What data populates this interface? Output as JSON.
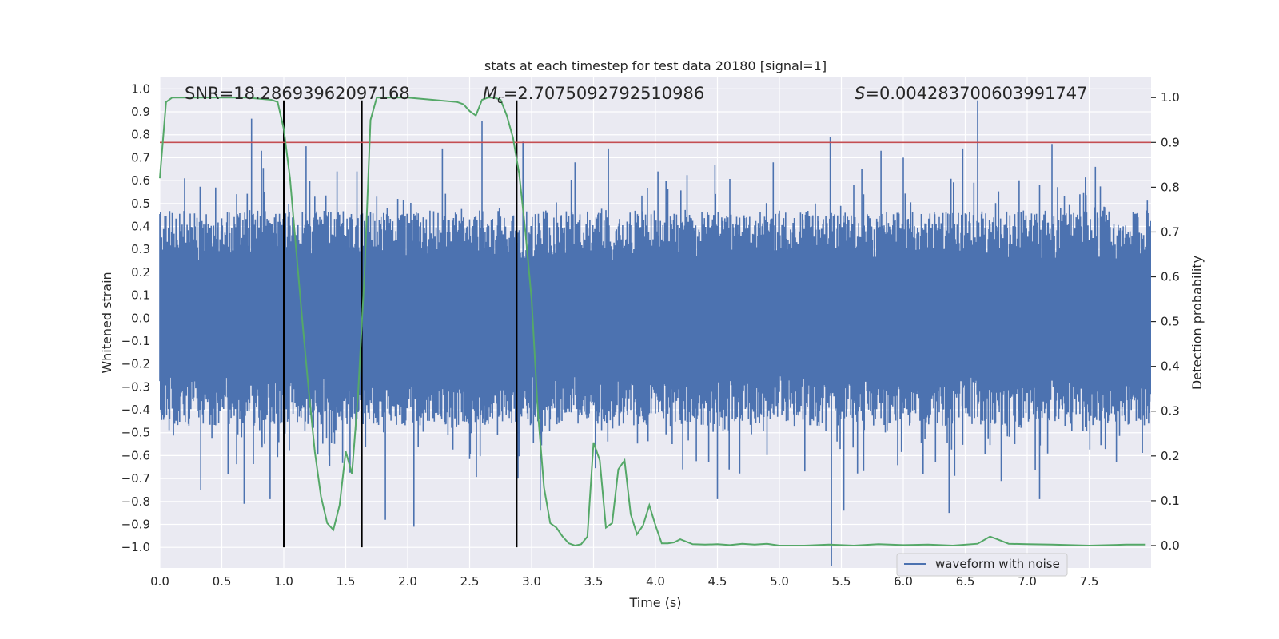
{
  "chart_data": {
    "type": "line",
    "title": "stats at each timestep for test data 20180 [signal=1]",
    "xlabel": "Time (s)",
    "ylabel_left": "Whitened strain",
    "ylabel_right": "Detection probability",
    "xlim": [
      0.0,
      8.0
    ],
    "ylim_left": [
      -1.09,
      1.05
    ],
    "ylim_right": [
      -0.05,
      1.045
    ],
    "x_ticks": [
      0.0,
      0.5,
      1.0,
      1.5,
      2.0,
      2.5,
      3.0,
      3.5,
      4.0,
      4.5,
      5.0,
      5.5,
      6.0,
      6.5,
      7.0,
      7.5
    ],
    "x_tick_labels": [
      "0.0",
      "0.5",
      "1.0",
      "1.5",
      "2.0",
      "2.5",
      "3.0",
      "3.5",
      "4.0",
      "4.5",
      "5.0",
      "5.5",
      "6.0",
      "6.5",
      "7.0",
      "7.5"
    ],
    "y_left_ticks": [
      -1.0,
      -0.9,
      -0.8,
      -0.7,
      -0.6,
      -0.5,
      -0.4,
      -0.3,
      -0.2,
      -0.1,
      0.0,
      0.1,
      0.2,
      0.3,
      0.4,
      0.5,
      0.6,
      0.7,
      0.8,
      0.9,
      1.0
    ],
    "y_left_tick_labels": [
      "−1.0",
      "−0.9",
      "−0.8",
      "−0.7",
      "−0.6",
      "−0.5",
      "−0.4",
      "−0.3",
      "−0.2",
      "−0.1",
      "0.0",
      "0.1",
      "0.2",
      "0.3",
      "0.4",
      "0.5",
      "0.6",
      "0.7",
      "0.8",
      "0.9",
      "1.0"
    ],
    "y_right_ticks": [
      0.0,
      0.1,
      0.2,
      0.3,
      0.4,
      0.5,
      0.6,
      0.7,
      0.8,
      0.9,
      1.0
    ],
    "y_right_tick_labels": [
      "0.0",
      "0.1",
      "0.2",
      "0.3",
      "0.4",
      "0.5",
      "0.6",
      "0.7",
      "0.8",
      "0.9",
      "1.0"
    ],
    "grid": true,
    "annotations": {
      "snr_text": "SNR=18.28693962097168",
      "mc_symbol": "M",
      "mc_subscript": "c",
      "mc_value": "=2.7075092792510986",
      "s_symbol": "S",
      "s_value": "=0.004283700603991747"
    },
    "vertical_lines_x": [
      1.0,
      1.63,
      2.88
    ],
    "vertical_lines_ymin": -1.0,
    "vertical_lines_ymax": 0.95,
    "threshold_line": {
      "axis": "right",
      "y": 0.9
    },
    "waveform_series": {
      "name": "waveform with noise",
      "color": "#4c72b0",
      "samples_per_second": 200,
      "base_amplitude": 0.25,
      "spike_peaks": [
        {
          "x": 0.74,
          "y": 0.87
        },
        {
          "x": 0.2,
          "y": 0.61
        },
        {
          "x": 0.45,
          "y": 0.57
        },
        {
          "x": 0.82,
          "y": 0.73
        },
        {
          "x": 1.18,
          "y": 0.75
        },
        {
          "x": 1.43,
          "y": 0.64
        },
        {
          "x": 1.59,
          "y": 0.64
        },
        {
          "x": 2.28,
          "y": 0.74
        },
        {
          "x": 2.6,
          "y": 0.86
        },
        {
          "x": 2.93,
          "y": 0.77
        },
        {
          "x": 3.35,
          "y": 0.68
        },
        {
          "x": 3.62,
          "y": 0.74
        },
        {
          "x": 4.02,
          "y": 0.64
        },
        {
          "x": 4.48,
          "y": 0.67
        },
        {
          "x": 5.41,
          "y": 0.79
        },
        {
          "x": 6.48,
          "y": 0.74
        },
        {
          "x": 6.6,
          "y": 0.95
        },
        {
          "x": 7.2,
          "y": 0.76
        },
        {
          "x": 7.55,
          "y": 0.66
        },
        {
          "x": 5.82,
          "y": 0.73
        },
        {
          "x": 6.0,
          "y": 0.7
        },
        {
          "x": 4.95,
          "y": 0.68
        }
      ],
      "spike_troughs": [
        {
          "x": 0.33,
          "y": -0.75
        },
        {
          "x": 0.68,
          "y": -0.81
        },
        {
          "x": 0.89,
          "y": -0.79
        },
        {
          "x": 1.82,
          "y": -0.88
        },
        {
          "x": 2.05,
          "y": -0.91
        },
        {
          "x": 3.07,
          "y": -0.84
        },
        {
          "x": 4.5,
          "y": -0.79
        },
        {
          "x": 5.42,
          "y": -1.08
        },
        {
          "x": 5.52,
          "y": -0.84
        },
        {
          "x": 6.37,
          "y": -0.85
        },
        {
          "x": 7.1,
          "y": -0.79
        },
        {
          "x": 0.55,
          "y": -0.68
        },
        {
          "x": 2.89,
          "y": -0.7
        },
        {
          "x": 4.22,
          "y": -0.66
        }
      ]
    },
    "probability_series": {
      "name": "detection probability",
      "color": "#55a868",
      "x": [
        0.0,
        0.05,
        0.1,
        0.2,
        0.3,
        0.5,
        0.7,
        0.9,
        0.95,
        1.0,
        1.05,
        1.1,
        1.15,
        1.2,
        1.25,
        1.3,
        1.35,
        1.4,
        1.45,
        1.5,
        1.55,
        1.6,
        1.65,
        1.7,
        1.75,
        1.8,
        2.0,
        2.2,
        2.4,
        2.45,
        2.5,
        2.55,
        2.6,
        2.65,
        2.7,
        2.75,
        2.8,
        2.85,
        2.9,
        2.95,
        3.0,
        3.05,
        3.1,
        3.15,
        3.2,
        3.25,
        3.3,
        3.35,
        3.4,
        3.45,
        3.5,
        3.55,
        3.6,
        3.65,
        3.7,
        3.75,
        3.8,
        3.85,
        3.9,
        3.95,
        4.0,
        4.05,
        4.1,
        4.15,
        4.2,
        4.3,
        4.4,
        4.5,
        4.6,
        4.7,
        4.8,
        4.9,
        5.0,
        5.2,
        5.4,
        5.6,
        5.8,
        6.0,
        6.2,
        6.4,
        6.6,
        6.7,
        6.75,
        6.85,
        7.0,
        7.2,
        7.5,
        7.8,
        7.95
      ],
      "y": [
        0.82,
        0.99,
        1.0,
        1.0,
        1.0,
        1.0,
        1.0,
        0.995,
        0.99,
        0.93,
        0.82,
        0.66,
        0.5,
        0.35,
        0.21,
        0.11,
        0.05,
        0.035,
        0.09,
        0.21,
        0.16,
        0.34,
        0.6,
        0.95,
        1.0,
        1.0,
        1.0,
        0.995,
        0.99,
        0.985,
        0.97,
        0.96,
        0.995,
        1.0,
        1.0,
        0.995,
        0.96,
        0.91,
        0.83,
        0.7,
        0.55,
        0.3,
        0.13,
        0.05,
        0.04,
        0.02,
        0.005,
        0.0,
        0.003,
        0.02,
        0.23,
        0.19,
        0.04,
        0.05,
        0.17,
        0.19,
        0.07,
        0.025,
        0.045,
        0.09,
        0.045,
        0.005,
        0.005,
        0.007,
        0.014,
        0.003,
        0.002,
        0.003,
        0.001,
        0.004,
        0.002,
        0.004,
        0.0,
        0.0,
        0.002,
        0.0,
        0.003,
        0.001,
        0.002,
        0.0,
        0.004,
        0.02,
        0.015,
        0.004,
        0.003,
        0.002,
        0.0,
        0.002,
        0.002
      ]
    },
    "legend": {
      "position": "lower-center-right",
      "entries": [
        "waveform with noise"
      ]
    },
    "colors": {
      "background": "#eaeaf2",
      "grid": "#ffffff",
      "waveform": "#4c72b0",
      "probability": "#55a868",
      "threshold": "#c44e52",
      "vertical_lines": "#000000"
    }
  }
}
